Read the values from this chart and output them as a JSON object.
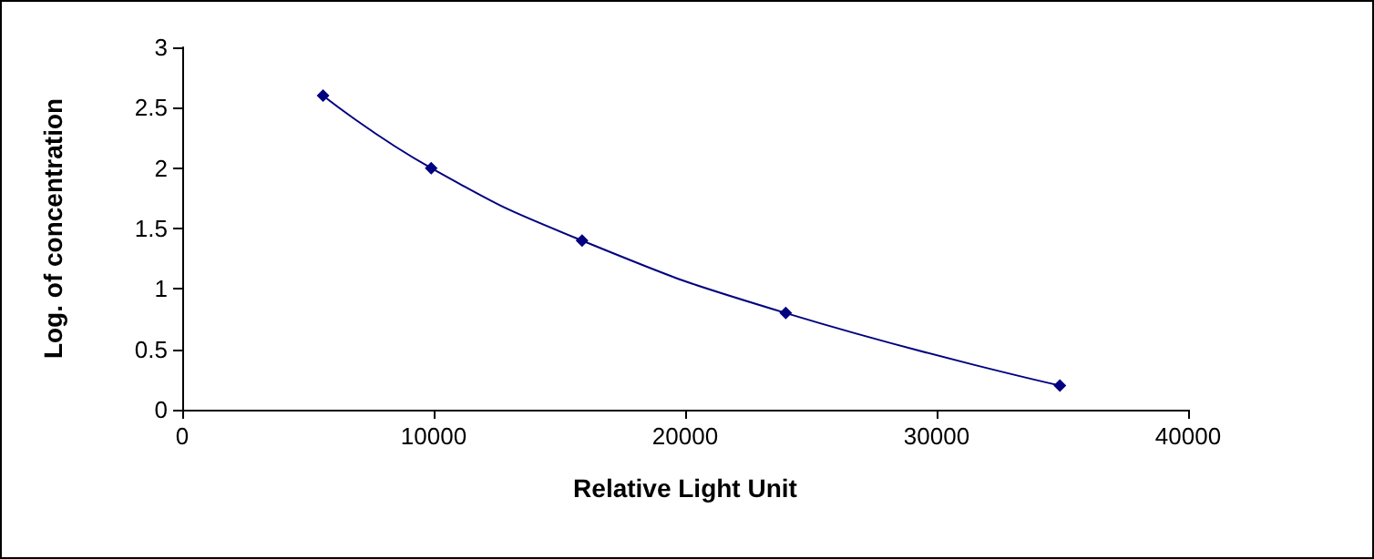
{
  "chart_data": {
    "type": "line",
    "xlabel": "Relative Light Unit",
    "ylabel": "Log. of concentration",
    "x": [
      5600,
      9900,
      15900,
      24000,
      34900
    ],
    "series": [
      {
        "color": "#000080",
        "values": [
          2.6,
          2.0,
          1.4,
          0.8,
          0.2
        ]
      }
    ],
    "xlim": [
      0,
      40000
    ],
    "xticks": [
      0,
      10000,
      20000,
      30000,
      40000
    ],
    "ylim": [
      0,
      3
    ],
    "yticks": [
      0,
      0.5,
      1,
      1.5,
      2,
      2.5,
      3
    ],
    "grid": false,
    "marker": "diamond",
    "line_style": "solid"
  }
}
